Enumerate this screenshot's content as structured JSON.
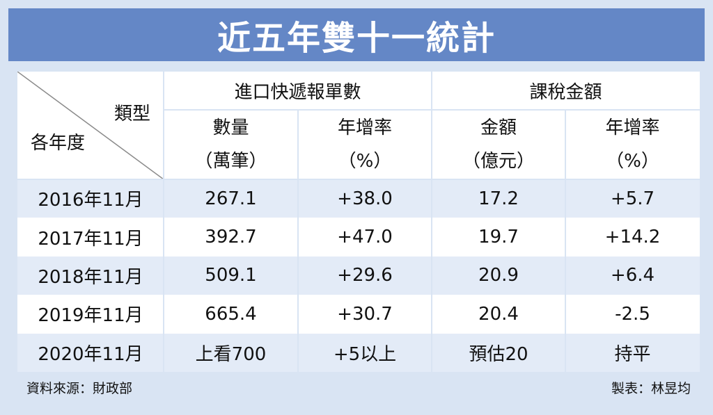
{
  "header": {
    "title": "近五年雙十一統計"
  },
  "table": {
    "corner": {
      "column_label": "類型",
      "row_label": "各年度"
    },
    "groups": [
      "進口快遞報單數",
      "課稅金額"
    ],
    "columns": [
      {
        "label": "數量",
        "unit": "（萬筆）"
      },
      {
        "label": "年增率",
        "unit": "（%）"
      },
      {
        "label": "金額",
        "unit": "（億元）"
      },
      {
        "label": "年增率",
        "unit": "（%）"
      }
    ],
    "rows": [
      [
        "2016年11月",
        "267.1",
        "+38.0",
        "17.2",
        "+5.7"
      ],
      [
        "2017年11月",
        "392.7",
        "+47.0",
        "19.7",
        "+14.2"
      ],
      [
        "2018年11月",
        "509.1",
        "+29.6",
        "20.9",
        "+6.4"
      ],
      [
        "2019年11月",
        "665.4",
        "+30.7",
        "20.4",
        "-2.5"
      ],
      [
        "2020年11月",
        "上看700",
        "+5以上",
        "預估20",
        "持平"
      ]
    ]
  },
  "footer": {
    "source": "資料來源：財政部",
    "credit": "製表：林昱均"
  }
}
